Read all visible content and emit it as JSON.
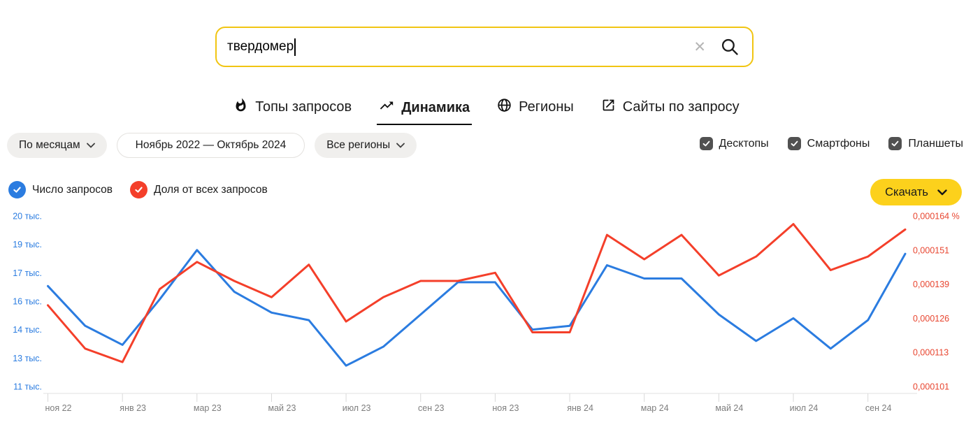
{
  "search": {
    "value": "твердомер",
    "clear_icon": "✕"
  },
  "tabs": [
    {
      "label": "Топы запросов",
      "icon": "flame-icon",
      "active": false
    },
    {
      "label": "Динамика",
      "icon": "trending-up-icon",
      "active": true
    },
    {
      "label": "Регионы",
      "icon": "globe-icon",
      "active": false
    },
    {
      "label": "Сайты по запросу",
      "icon": "external-link-icon",
      "active": false
    }
  ],
  "filters": {
    "period": "По месяцам",
    "date_range": "Ноябрь 2022 — Октябрь 2024",
    "region": "Все регионы",
    "devices": [
      {
        "label": "Десктопы",
        "checked": true
      },
      {
        "label": "Смартфоны",
        "checked": true
      },
      {
        "label": "Планшеты",
        "checked": true
      }
    ]
  },
  "legend": [
    {
      "label": "Число запросов",
      "color": "#2b7ce0",
      "enabled": true
    },
    {
      "label": "Доля от всех запросов",
      "color": "#f43f2a",
      "enabled": true
    }
  ],
  "download": {
    "label": "Скачать"
  },
  "chart_data": {
    "type": "line",
    "x": [
      "ноя 22",
      "дек 22",
      "янв 23",
      "фев 23",
      "мар 23",
      "апр 23",
      "май 23",
      "июн 23",
      "июл 23",
      "авг 23",
      "сен 23",
      "окт 23",
      "ноя 23",
      "дек 23",
      "янв 24",
      "фев 24",
      "мар 24",
      "апр 24",
      "май 24",
      "июн 24",
      "июл 24",
      "авг 24",
      "сен 24",
      "окт 24"
    ],
    "x_tick_labels": [
      "ноя 22",
      "янв 23",
      "мар 23",
      "май 23",
      "июл 23",
      "сен 23",
      "ноя 23",
      "янв 24",
      "мар 24",
      "май 24",
      "июл 24",
      "сен 24"
    ],
    "series": [
      {
        "name": "Число запросов",
        "axis": "left",
        "color": "#2b7ce0",
        "values": [
          16300,
          14200,
          13200,
          15600,
          18200,
          16000,
          14900,
          14500,
          12100,
          13100,
          14800,
          16500,
          16500,
          14000,
          14200,
          17400,
          16700,
          16700,
          14800,
          13400,
          14600,
          13000,
          14500,
          18000
        ]
      },
      {
        "name": "Доля от всех запросов",
        "axis": "right",
        "color": "#f43f2a",
        "values": [
          0.000131,
          0.000115,
          0.00011,
          0.000137,
          0.000147,
          0.00014,
          0.000134,
          0.000146,
          0.000125,
          0.000134,
          0.00014,
          0.00014,
          0.000143,
          0.000121,
          0.000121,
          0.000157,
          0.000148,
          0.000157,
          0.000142,
          0.000149,
          0.000161,
          0.000144,
          0.000149,
          0.000159
        ]
      }
    ],
    "left_axis": {
      "tick_labels": [
        "20 тыс.",
        "19 тыс.",
        "17 тыс.",
        "16 тыс.",
        "14 тыс.",
        "13 тыс.",
        "11 тыс."
      ],
      "tick_values": [
        20000,
        18500,
        17000,
        15500,
        14000,
        12500,
        11000
      ],
      "min": 11000,
      "max": 20000,
      "color": "#2b7ce0"
    },
    "right_axis": {
      "tick_labels": [
        "0,000164 %",
        "0,000151",
        "0,000139",
        "0,000126",
        "0,000113",
        "0,000101"
      ],
      "tick_values": [
        0.000164,
        0.0001514,
        0.0001388,
        0.0001262,
        0.0001136,
        0.000101
      ],
      "min": 0.000101,
      "max": 0.000164,
      "color": "#e8452f"
    },
    "grid": false,
    "legend_position": "top-left",
    "x_label_color": "#7d7d7d"
  }
}
